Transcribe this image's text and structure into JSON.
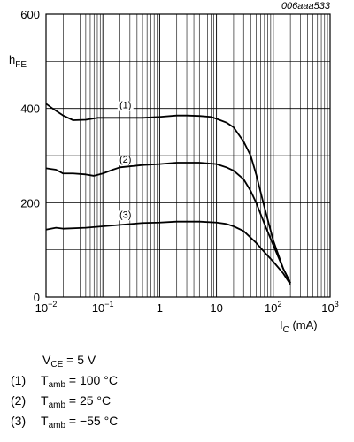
{
  "figure_id": "006aaa533",
  "chart_data": {
    "type": "line",
    "xscale": "log",
    "xlim": [
      0.01,
      1000
    ],
    "ylim": [
      0,
      600
    ],
    "x_ticks": [
      0.01,
      0.1,
      1,
      10,
      100,
      1000
    ],
    "y_ticks": [
      0,
      200,
      400,
      600
    ],
    "x_tick_labels": {
      "0.01": {
        "base": "10",
        "exp": "−2"
      },
      "0.1": {
        "base": "10",
        "exp": "−1"
      },
      "1": {
        "base": "1",
        "exp": ""
      },
      "10": {
        "base": "10",
        "exp": ""
      },
      "100": {
        "base": "10",
        "exp": "2"
      },
      "1000": {
        "base": "10",
        "exp": "3"
      }
    },
    "y_tick_labels": {
      "0": "0",
      "200": "200",
      "400": "400",
      "600": "600"
    },
    "ylabel": {
      "main": "h",
      "sub": "FE"
    },
    "xlabel": {
      "main": "I",
      "sub": "C",
      "unit": " (mA)"
    },
    "grid": true,
    "series": [
      {
        "name": "(1)",
        "label_at": [
          0.25,
          400
        ],
        "points": [
          [
            0.01,
            410
          ],
          [
            0.013,
            400
          ],
          [
            0.02,
            385
          ],
          [
            0.03,
            375
          ],
          [
            0.05,
            376
          ],
          [
            0.08,
            380
          ],
          [
            0.1,
            380
          ],
          [
            0.2,
            380
          ],
          [
            0.5,
            380
          ],
          [
            1,
            382
          ],
          [
            2,
            385
          ],
          [
            3,
            385
          ],
          [
            5,
            384
          ],
          [
            8,
            382
          ],
          [
            10,
            378
          ],
          [
            15,
            370
          ],
          [
            20,
            360
          ],
          [
            30,
            330
          ],
          [
            40,
            300
          ],
          [
            50,
            260
          ],
          [
            70,
            190
          ],
          [
            100,
            120
          ],
          [
            150,
            60
          ],
          [
            200,
            30
          ]
        ]
      },
      {
        "name": "(2)",
        "label_at": [
          0.25,
          285
        ],
        "points": [
          [
            0.01,
            273
          ],
          [
            0.015,
            270
          ],
          [
            0.02,
            262
          ],
          [
            0.03,
            262
          ],
          [
            0.05,
            260
          ],
          [
            0.07,
            257
          ],
          [
            0.1,
            262
          ],
          [
            0.15,
            270
          ],
          [
            0.2,
            275
          ],
          [
            0.5,
            280
          ],
          [
            1,
            282
          ],
          [
            2,
            285
          ],
          [
            5,
            285
          ],
          [
            10,
            282
          ],
          [
            15,
            275
          ],
          [
            20,
            268
          ],
          [
            30,
            250
          ],
          [
            40,
            225
          ],
          [
            50,
            200
          ],
          [
            70,
            155
          ],
          [
            100,
            110
          ],
          [
            150,
            60
          ],
          [
            200,
            30
          ]
        ]
      },
      {
        "name": "(3)",
        "label_at": [
          0.25,
          168
        ],
        "points": [
          [
            0.01,
            143
          ],
          [
            0.015,
            147
          ],
          [
            0.02,
            145
          ],
          [
            0.05,
            147
          ],
          [
            0.1,
            150
          ],
          [
            0.2,
            153
          ],
          [
            0.5,
            157
          ],
          [
            1,
            158
          ],
          [
            2,
            160
          ],
          [
            5,
            160
          ],
          [
            10,
            158
          ],
          [
            15,
            155
          ],
          [
            20,
            150
          ],
          [
            30,
            140
          ],
          [
            50,
            115
          ],
          [
            70,
            95
          ],
          [
            100,
            75
          ],
          [
            150,
            50
          ],
          [
            200,
            27
          ]
        ]
      }
    ]
  },
  "legend": {
    "conditions": {
      "main": "V",
      "sub": "CE",
      "rest": " = 5 V"
    },
    "items": [
      {
        "num": "(1)",
        "main": "T",
        "sub": "amb",
        "rest": " = 100 °C"
      },
      {
        "num": "(2)",
        "main": "T",
        "sub": "amb",
        "rest": " = 25 °C"
      },
      {
        "num": "(3)",
        "main": "T",
        "sub": "amb",
        "rest": " = −55 °C"
      }
    ]
  }
}
